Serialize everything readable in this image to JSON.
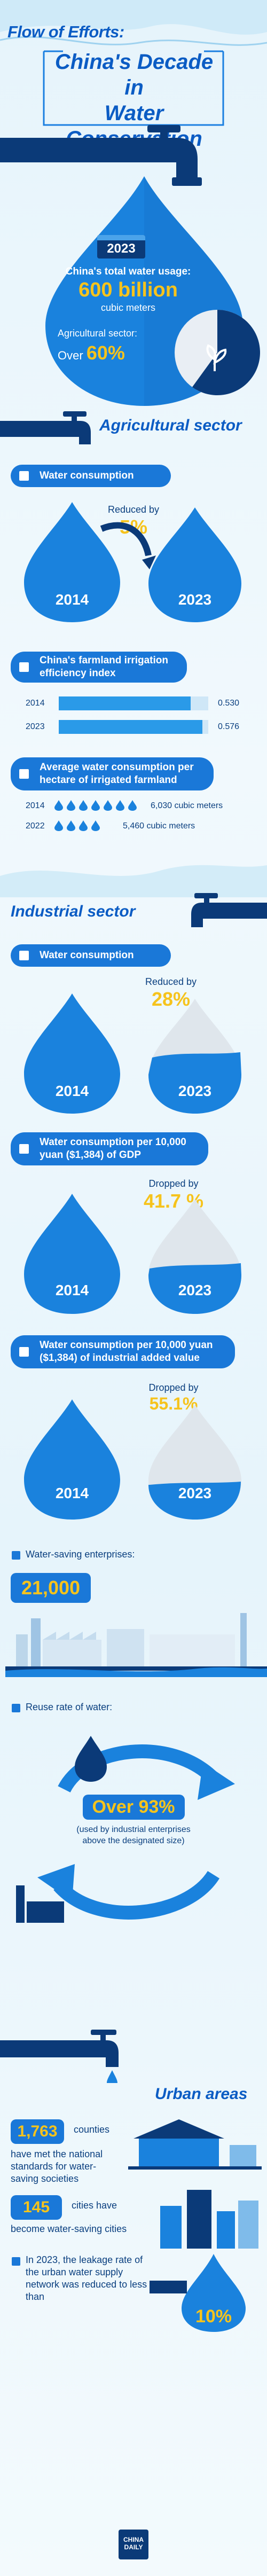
{
  "header": {
    "kicker": "Flow of Efforts:",
    "title_line1": "China's Decade in",
    "title_line2": "Water Conservation"
  },
  "intro": {
    "year": "2023",
    "usage_label": "China's total water usage:",
    "usage_value": "600 billion",
    "usage_unit": "cubic meters",
    "agri_label": "Agricultural sector:",
    "agri_prefix": "Over",
    "agri_value": "60%",
    "agri_share": 0.6
  },
  "agriculture": {
    "section_title": "Agricultural sector",
    "water_consumption": {
      "pill": "Water consumption",
      "reduced_label": "Reduced by",
      "reduced_value": "5%",
      "year_a": "2014",
      "year_b": "2023"
    },
    "irrigation": {
      "pill": "China's farmland irrigation efficiency index",
      "rows": [
        {
          "year": "2014",
          "value": "0.530",
          "fraction": 0.53
        },
        {
          "year": "2023",
          "value": "0.576",
          "fraction": 0.576
        }
      ]
    },
    "per_hectare": {
      "pill": "Average water consumption per hectare of irrigated farmland",
      "rows": [
        {
          "year": "2014",
          "value": "6,030 cubic meters",
          "drops": 7
        },
        {
          "year": "2022",
          "value": "5,460 cubic meters",
          "drops": 4
        }
      ]
    }
  },
  "industry": {
    "section_title": "Industrial sector",
    "water_consumption": {
      "pill": "Water consumption",
      "reduced_label": "Reduced by",
      "reduced_value": "28%",
      "year_a": "2014",
      "year_b": "2023"
    },
    "gdp": {
      "pill_line1": "Water consumption per 10,000",
      "pill_line2": "yuan ($1,384) of GDP",
      "reduced_label": "Dropped by",
      "reduced_value": "41.7 %",
      "year_a": "2014",
      "year_b": "2023"
    },
    "added_value": {
      "pill_line1": "Water consumption per 10,000 yuan",
      "pill_line2": "($1,384) of industrial added value",
      "reduced_label": "Dropped by",
      "reduced_value": "55.1%",
      "year_a": "2014",
      "year_b": "2023"
    },
    "enterprises": {
      "label": "Water-saving enterprises:",
      "value": "21,000"
    },
    "reuse": {
      "label": "Reuse rate of water:",
      "value": "Over 93%",
      "note": "(used by industrial enterprises above the designated size)"
    }
  },
  "urban": {
    "section_title": "Urban areas",
    "counties_value": "1,763",
    "counties_text_a": "counties",
    "counties_text_b": "have met the national standards for water-saving societies",
    "cities_value": "145",
    "cities_text_a": "cities have",
    "cities_text_b": "become water-saving cities",
    "leak_text": "In 2023, the leakage rate of the urban water supply network was reduced to less than",
    "leak_value": "10%"
  },
  "footer": {
    "logo_line1": "CHINA",
    "logo_line2": "DAILY"
  },
  "colors": {
    "brand_blue": "#1a78d8",
    "dark_blue": "#0a3f7f",
    "accent_yellow": "#f6c31c",
    "faucet": "#0b3a78"
  }
}
